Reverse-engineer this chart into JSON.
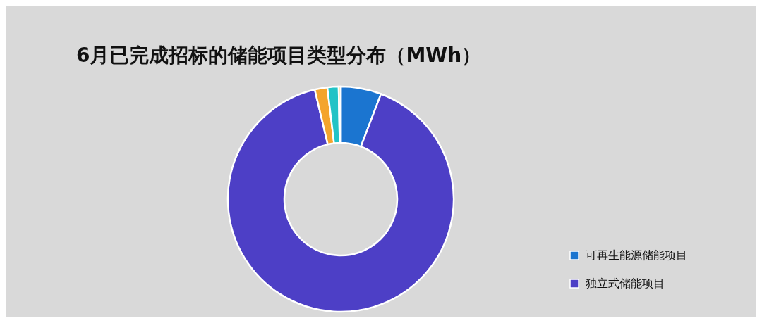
{
  "chart_data": {
    "type": "donut",
    "title": "6月已完成招标的储能项目类型分布（MWh）",
    "categories": [
      "可再生能源储能项目",
      "独立式储能项目",
      null,
      null,
      null
    ],
    "values": [
      5.8,
      90.5,
      1.8,
      1.6,
      0.3
    ],
    "colors": [
      "#1b75d0",
      "#4d3fc6",
      "#f4a42c",
      "#22c3c6",
      "#f2d36a"
    ],
    "legend": "right"
  }
}
